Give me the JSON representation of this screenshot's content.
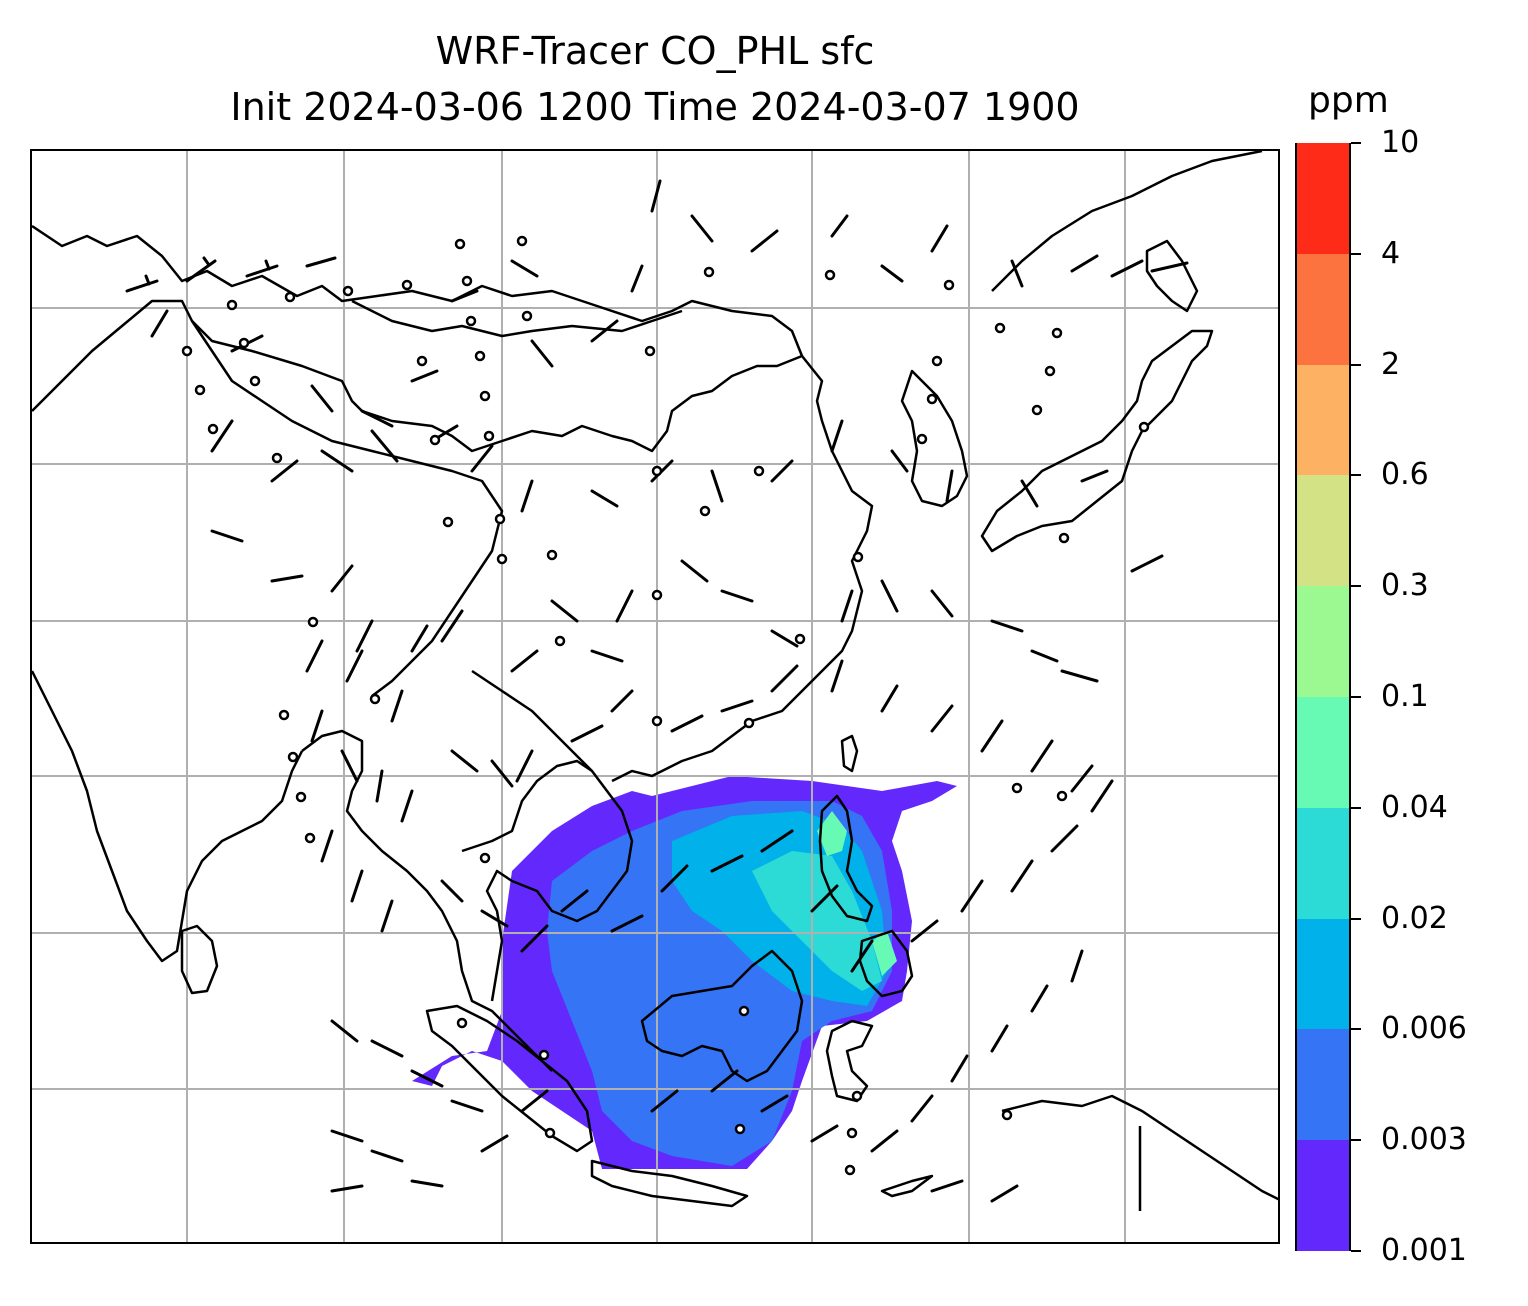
{
  "title": {
    "line1": "WRF-Tracer CO_PHL sfc",
    "line2": "Init 2024-03-06 1200 Time 2024-03-07 1900"
  },
  "colorbar": {
    "unit": "ppm",
    "levels": [
      "0.001",
      "0.003",
      "0.006",
      "0.02",
      "0.04",
      "0.1",
      "0.3",
      "0.6",
      "2",
      "4",
      "10"
    ],
    "colors": [
      "#6329fc",
      "#3474f5",
      "#00b1ea",
      "#2cdbd6",
      "#66fab5",
      "#9cf992",
      "#d2e285",
      "#fdb162",
      "#fd7340",
      "#fd2b17"
    ]
  },
  "map": {
    "variable": "CO_PHL tracer concentration, surface",
    "projection_grid": "lat-lon gridlines (light gray)",
    "coastline_color": "#000000",
    "gridline_color": "#b0b0b0",
    "overlay": "wind barbs and calm-wind circles"
  },
  "chart_data": {
    "type": "heatmap",
    "title": "WRF-Tracer CO_PHL sfc",
    "subtitle": "Init 2024-03-06 1200 Time 2024-03-07 1900",
    "colorbar_label": "ppm",
    "colorbar_ticks": [
      0.001,
      0.003,
      0.006,
      0.02,
      0.04,
      0.1,
      0.3,
      0.6,
      2,
      4,
      10
    ]
  }
}
